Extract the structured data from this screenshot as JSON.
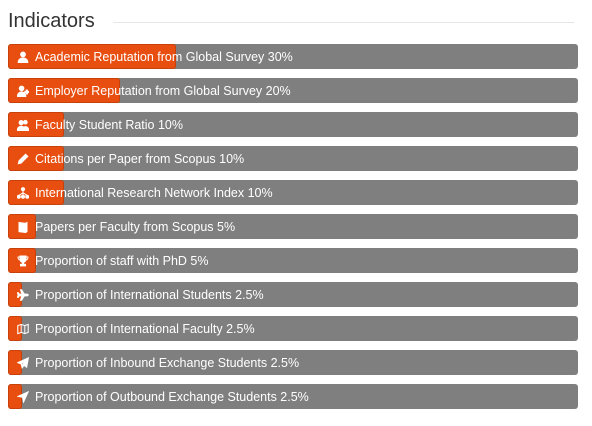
{
  "section": {
    "title": "Indicators"
  },
  "colors": {
    "bar_background": "#7f7f7f",
    "bar_fill": "#e84e0f",
    "text": "#ffffff"
  },
  "indicators": [
    {
      "label": "Academic Reputation from Global Survey 30%",
      "weight_percent": 30,
      "icon": "user-icon"
    },
    {
      "label": "Employer Reputation from Global Survey 20%",
      "weight_percent": 20,
      "icon": "user-plus-icon"
    },
    {
      "label": "Faculty Student Ratio 10%",
      "weight_percent": 10,
      "icon": "users-icon"
    },
    {
      "label": "Citations per Paper from Scopus 10%",
      "weight_percent": 10,
      "icon": "pencil-icon"
    },
    {
      "label": "International Research Network Index 10%",
      "weight_percent": 10,
      "icon": "network-icon"
    },
    {
      "label": "Papers per Faculty from Scopus 5%",
      "weight_percent": 5,
      "icon": "book-icon"
    },
    {
      "label": "Proportion of staff with PhD 5%",
      "weight_percent": 5,
      "icon": "trophy-icon"
    },
    {
      "label": "Proportion of International Students 2.5%",
      "weight_percent": 2.5,
      "icon": "airplane-icon"
    },
    {
      "label": "Proportion of International Faculty 2.5%",
      "weight_percent": 2.5,
      "icon": "map-icon"
    },
    {
      "label": "Proportion of Inbound Exchange Students 2.5%",
      "weight_percent": 2.5,
      "icon": "send-icon"
    },
    {
      "label": "Proportion of Outbound Exchange Students 2.5%",
      "weight_percent": 2.5,
      "icon": "location-arrow-icon"
    }
  ]
}
